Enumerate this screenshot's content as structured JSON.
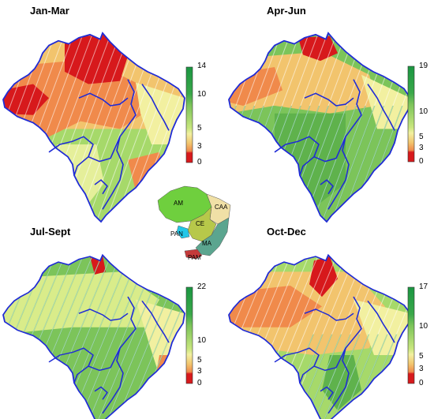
{
  "panels": [
    {
      "title": "Jan-Mar",
      "ticks": [
        "14",
        "10",
        "5",
        "3",
        "0"
      ]
    },
    {
      "title": "Apr-Jun",
      "ticks": [
        "19",
        "10",
        "5",
        "3",
        "0"
      ]
    },
    {
      "title": "Jul-Sept",
      "ticks": [
        "22",
        "10",
        "5",
        "3",
        "0"
      ]
    },
    {
      "title": "Oct-Dec",
      "ticks": [
        "17",
        "10",
        "5",
        "3",
        "0"
      ]
    }
  ],
  "inset": {
    "regions": [
      "AM",
      "CAA",
      "CE",
      "PAN",
      "MA",
      "PAM"
    ]
  },
  "colors": {
    "red": "#d7191c",
    "orange": "#f08a4b",
    "yellow": "#f2f0a0",
    "lightgreen": "#a6d96a",
    "green": "#1a9641",
    "border": "#1f2bd6"
  }
}
